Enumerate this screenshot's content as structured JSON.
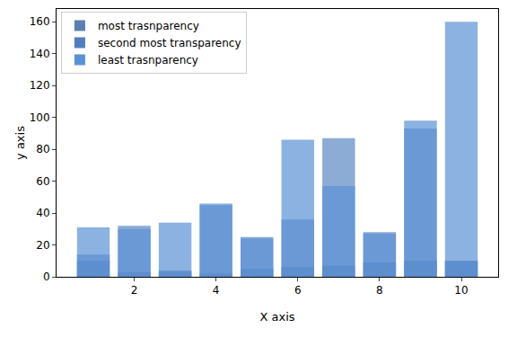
{
  "chart_data": {
    "type": "bar",
    "x_label": "X axis",
    "y_label": "y axis",
    "x": [
      1,
      2,
      3,
      4,
      5,
      6,
      7,
      8,
      9,
      10
    ],
    "series": [
      {
        "name": "most trasnparency",
        "color": "#5b7fae",
        "values": [
          10,
          3,
          4,
          2,
          5,
          6,
          7,
          9,
          10,
          10
        ]
      },
      {
        "name": "second most transparency",
        "color": "#4f7fbf",
        "values": [
          14,
          32,
          3,
          45,
          25,
          36,
          87,
          28,
          93,
          10
        ]
      },
      {
        "name": "least trasnparency",
        "color": "#5b92d6",
        "values": [
          31,
          30,
          34,
          46,
          24,
          86,
          57,
          27,
          98,
          160
        ]
      }
    ],
    "xlim": [
      0.1,
      10.9
    ],
    "xticks": [
      2,
      4,
      6,
      8,
      10
    ],
    "ylim": [
      0,
      168
    ],
    "yticks": [
      0,
      20,
      40,
      60,
      80,
      100,
      120,
      140,
      160
    ],
    "grid": false,
    "legend": "upper left"
  }
}
